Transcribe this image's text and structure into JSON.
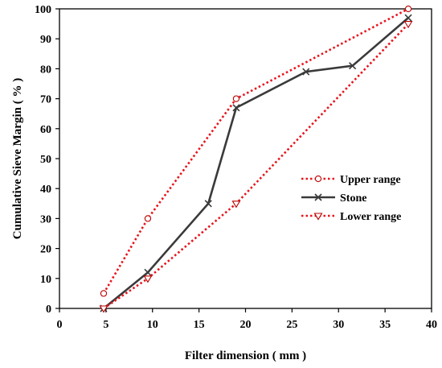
{
  "chart_data": {
    "type": "line",
    "xlabel": "Filter dimension ( mm )",
    "ylabel": "Cumulative Sieve Margin ( % )",
    "xlim": [
      0,
      40
    ],
    "ylim": [
      0,
      100
    ],
    "xticks": [
      0,
      5,
      10,
      15,
      20,
      25,
      30,
      35,
      40
    ],
    "yticks": [
      0,
      10,
      20,
      30,
      40,
      50,
      60,
      70,
      80,
      90,
      100
    ],
    "grid": false,
    "legend_position": "center-right",
    "series": [
      {
        "name": "Upper range",
        "color": "#e8141c",
        "line_style": "dotted",
        "marker": "circle",
        "points": [
          [
            4.75,
            5
          ],
          [
            9.5,
            30
          ],
          [
            19,
            70
          ],
          [
            37.5,
            100
          ]
        ]
      },
      {
        "name": "Stone",
        "color": "#3a3a3a",
        "line_style": "solid",
        "marker": "x",
        "points": [
          [
            4.75,
            0
          ],
          [
            9.5,
            12
          ],
          [
            16,
            35
          ],
          [
            19,
            67
          ],
          [
            26.5,
            79
          ],
          [
            31.5,
            81
          ],
          [
            37.5,
            97
          ]
        ]
      },
      {
        "name": "Lower range",
        "color": "#e8141c",
        "line_style": "dotted",
        "marker": "triangle-down",
        "points": [
          [
            4.75,
            0
          ],
          [
            9.5,
            10
          ],
          [
            19,
            35
          ],
          [
            37.5,
            95
          ]
        ]
      }
    ]
  }
}
